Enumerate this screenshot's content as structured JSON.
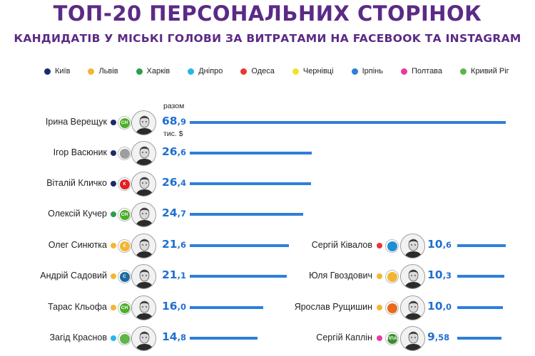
{
  "title": "ТОП-20 ПЕРСОНАЛЬНИХ СТОРІНОК",
  "subtitle": "КАНДИДАТІВ У МІСЬКІ ГОЛОВИ ЗА ВИТРАТАМИ НА FACEBOOK ТА INSTAGRAM",
  "legend": [
    {
      "label": "Київ",
      "color": "#1a2d6b"
    },
    {
      "label": "Львів",
      "color": "#f2b632"
    },
    {
      "label": "Харків",
      "color": "#2e9d4a"
    },
    {
      "label": "Дніпро",
      "color": "#29b6e8"
    },
    {
      "label": "Одеса",
      "color": "#e53935"
    },
    {
      "label": "Чернівці",
      "color": "#f2e22c"
    },
    {
      "label": "Ірпінь",
      "color": "#2f7fd8"
    },
    {
      "label": "Полтава",
      "color": "#e83aa3"
    },
    {
      "label": "Кривий Ріг",
      "color": "#5fb548"
    }
  ],
  "annotations": {
    "total_label": "разом",
    "unit_label": "тис. $"
  },
  "chart_data": {
    "type": "bar",
    "unit": "тис. $",
    "xlim": [
      0,
      68.9
    ],
    "columns": [
      {
        "rows": [
          {
            "name": "Ірина Верещук",
            "value": 68.9,
            "int": "68",
            "dec": ",9",
            "city_color": "#1a2d6b",
            "party_icon": "sluha-narodu-icon",
            "party_color": "#4caf2a",
            "party_text": "СН"
          },
          {
            "name": "Ігор Васюник",
            "value": 26.6,
            "int": "26",
            "dec": ",6",
            "city_color": "#1a2d6b",
            "party_icon": "person-silhouette-icon",
            "party_color": "#9e9e9e",
            "party_text": ""
          },
          {
            "name": "Віталій Кличко",
            "value": 26.4,
            "int": "26",
            "dec": ",4",
            "city_color": "#1a2d6b",
            "party_icon": "udar-icon",
            "party_color": "#e02020",
            "party_text": "К"
          },
          {
            "name": "Олексій Кучер",
            "value": 24.7,
            "int": "24",
            "dec": ",7",
            "city_color": "#2e9d4a",
            "party_icon": "sluha-narodu-icon",
            "party_color": "#4caf2a",
            "party_text": "СН"
          },
          {
            "name": "Олег Синютка",
            "value": 21.6,
            "int": "21",
            "dec": ",6",
            "city_color": "#f2b632",
            "party_icon": "yevropeiska-solidarnist-icon",
            "party_color": "#f2b632",
            "party_text": "€"
          },
          {
            "name": "Андрій Садовий",
            "value": 21.1,
            "int": "21",
            "dec": ",1",
            "city_color": "#f2b632",
            "party_icon": "samopomich-icon",
            "party_color": "#1d6aa5",
            "party_text": "С"
          },
          {
            "name": "Тарас Кльофа",
            "value": 16.0,
            "int": "16",
            "dec": ",0",
            "city_color": "#f2b632",
            "party_icon": "sluha-narodu-icon",
            "party_color": "#4caf2a",
            "party_text": "СН"
          },
          {
            "name": "Загід Краснов",
            "value": 14.8,
            "int": "14",
            "dec": ",8",
            "city_color": "#29b6e8",
            "party_icon": "tree-icon",
            "party_color": "#5fb548",
            "party_text": ""
          }
        ]
      },
      {
        "rows": [
          {
            "name": "Сергій Ківалов",
            "value": 10.6,
            "int": "10",
            "dec": ",6",
            "city_color": "#e53935",
            "party_icon": "wave-party-icon",
            "party_color": "#1d8fd6",
            "party_text": ""
          },
          {
            "name": "Юля Гвоздович",
            "value": 10.3,
            "int": "10",
            "dec": ",3",
            "city_color": "#f2b632",
            "party_icon": "sun-icon",
            "party_color": "#f2b632",
            "party_text": ""
          },
          {
            "name": "Ярослав Рущишин",
            "value": 10.0,
            "int": "10",
            "dec": ",0",
            "city_color": "#f2b632",
            "party_icon": "flower-icon",
            "party_color": "#e86a1a",
            "party_text": ""
          },
          {
            "name": "Сергій Каплін",
            "value": 9.58,
            "int": "9",
            "dec": ",58",
            "city_color": "#e83aa3",
            "party_icon": "ppa-icon",
            "party_color": "#3b8f2d",
            "party_text": "ППА"
          }
        ]
      }
    ]
  }
}
